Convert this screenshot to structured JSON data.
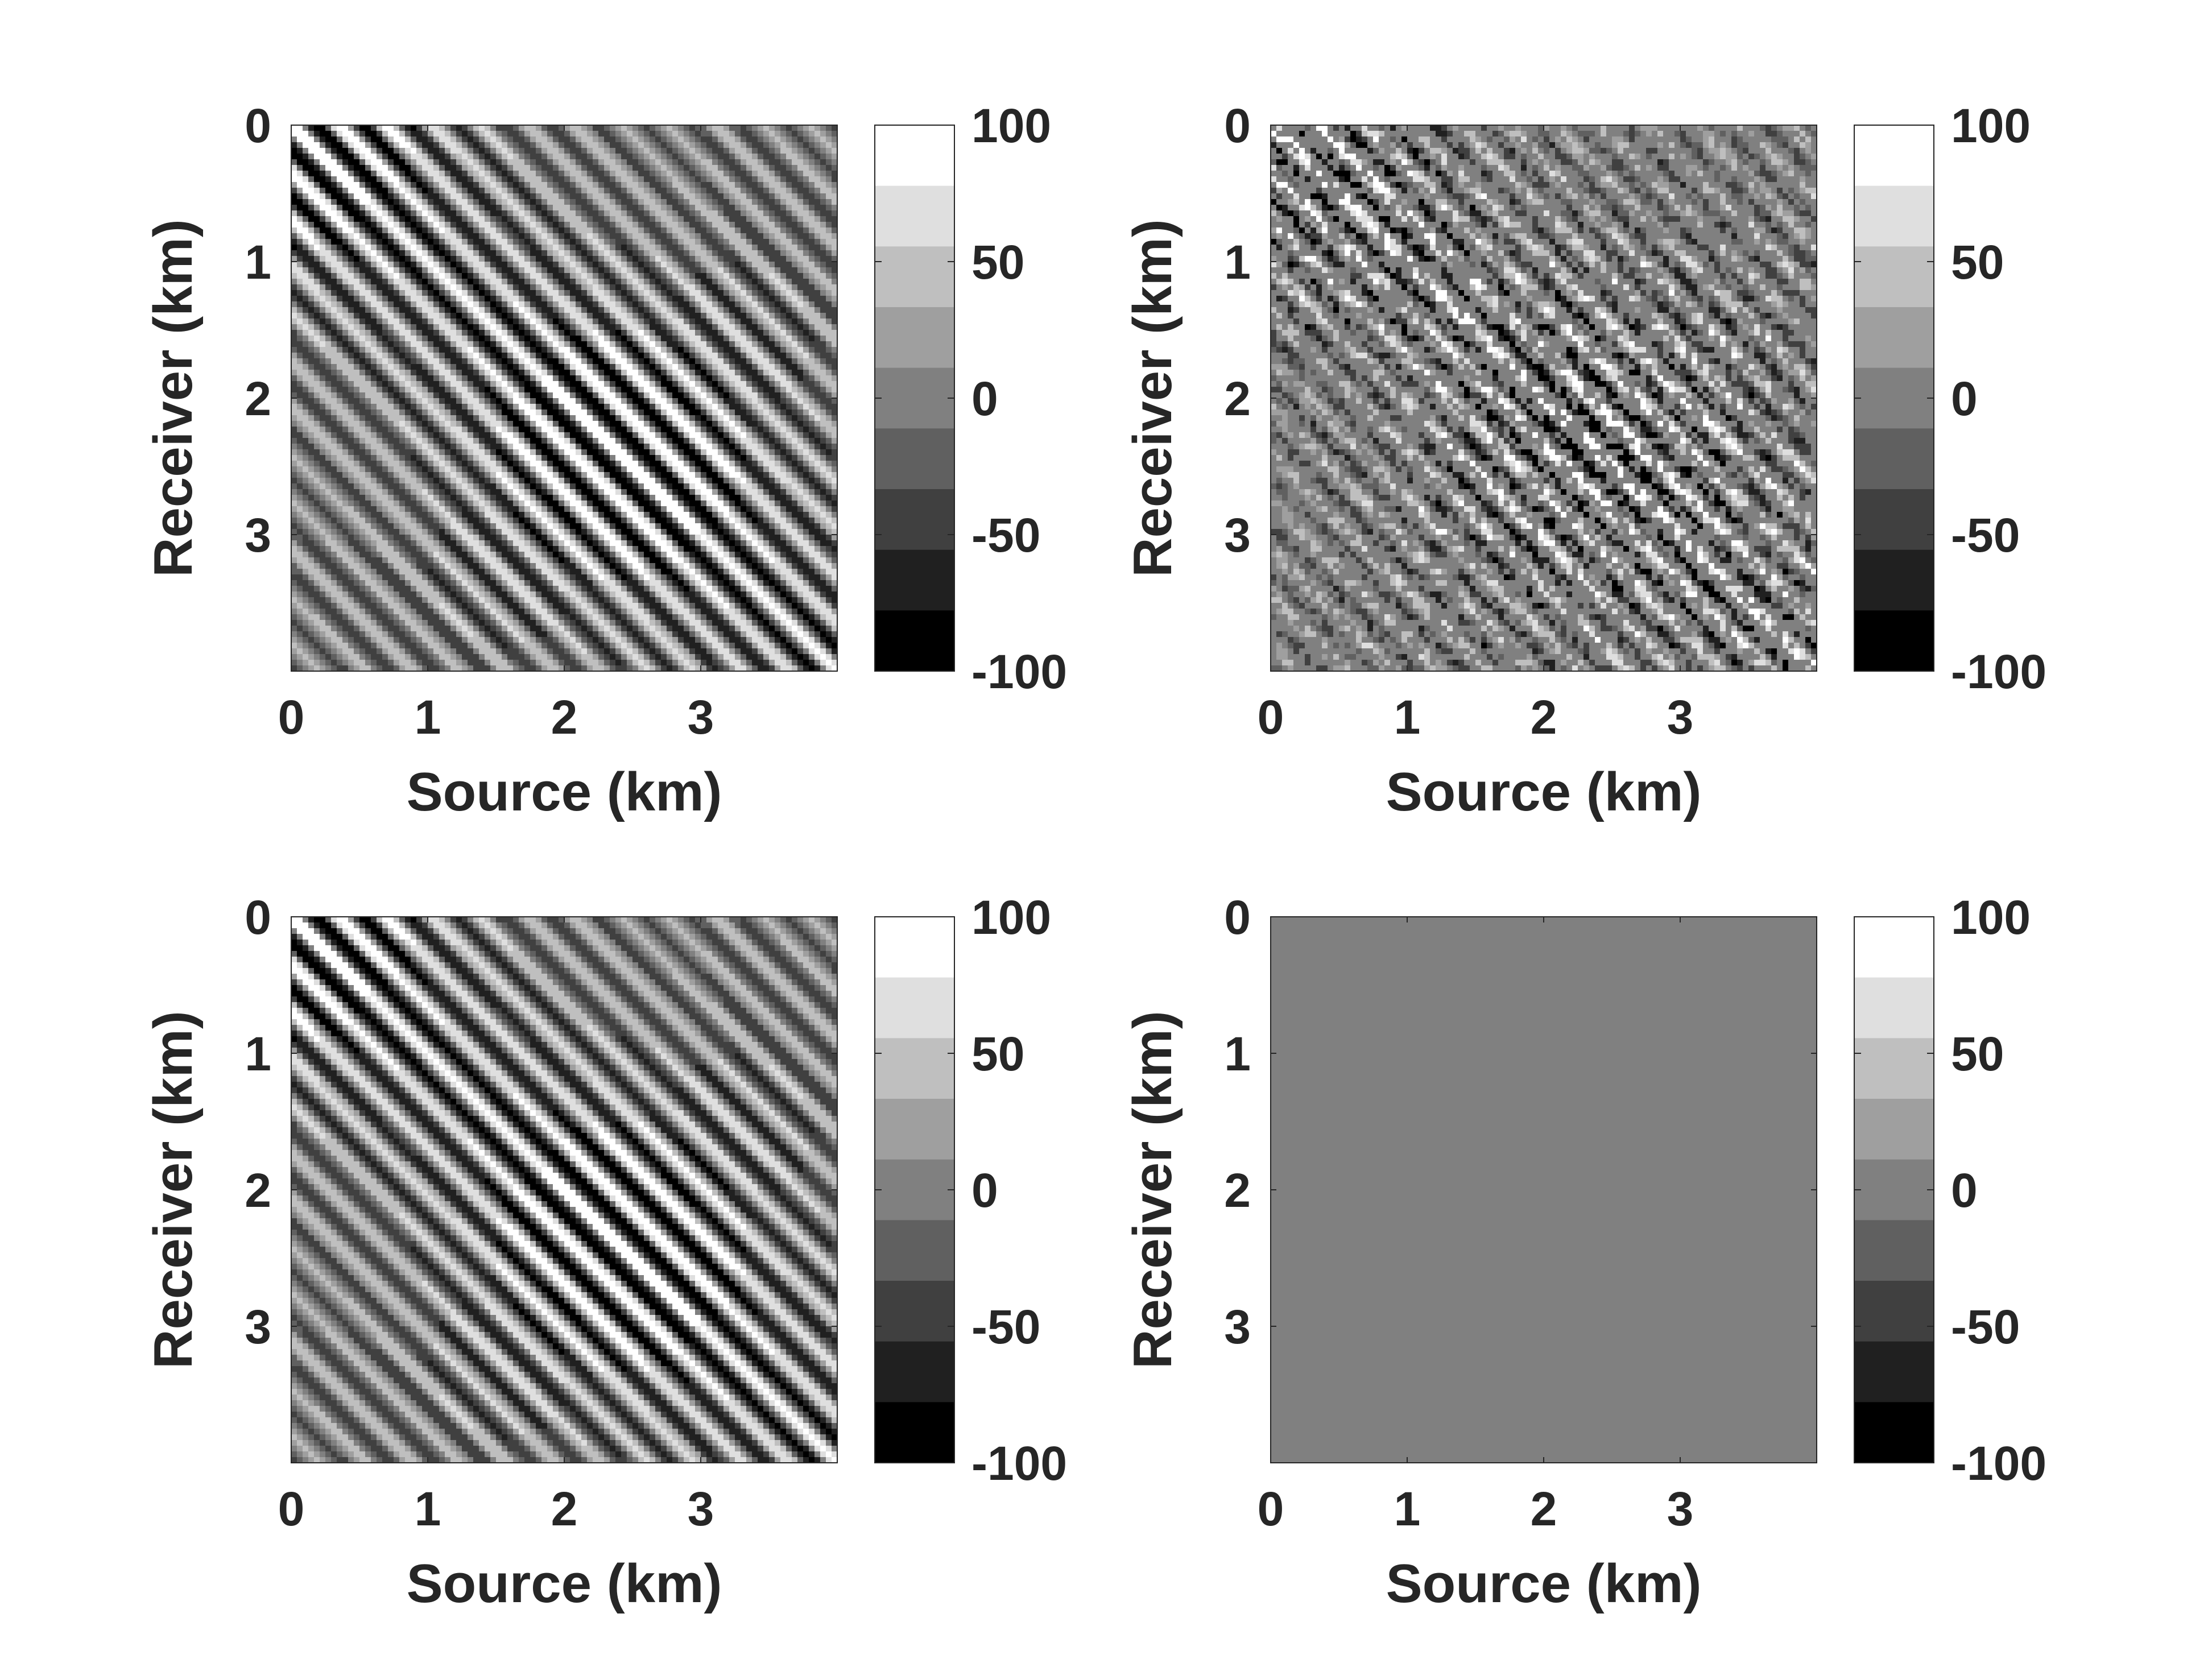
{
  "chart_data": [
    {
      "type": "heatmap",
      "panel": "top-left",
      "title": "",
      "xlabel": "Source (km)",
      "ylabel": "Receiver (km)",
      "xlim": [
        0,
        4
      ],
      "ylim": [
        0,
        4
      ],
      "y_reversed": true,
      "xticks": [
        0,
        1,
        2,
        3
      ],
      "yticks": [
        0,
        1,
        2,
        3
      ],
      "pattern": "diagonal oscillating stripes",
      "noise": false,
      "colorbar": {
        "min": -100,
        "max": 100,
        "levels": 9,
        "ticks": [
          100,
          50,
          0,
          -50,
          -100
        ],
        "colormap": "gray"
      }
    },
    {
      "type": "heatmap",
      "panel": "top-right",
      "title": "",
      "xlabel": "Source (km)",
      "ylabel": "Receiver (km)",
      "xlim": [
        0,
        4
      ],
      "ylim": [
        0,
        4
      ],
      "y_reversed": true,
      "xticks": [
        0,
        1,
        2,
        3
      ],
      "yticks": [
        0,
        1,
        2,
        3
      ],
      "pattern": "diagonal oscillating stripes with random dropouts",
      "noise": true,
      "colorbar": {
        "min": -100,
        "max": 100,
        "levels": 9,
        "ticks": [
          100,
          50,
          0,
          -50,
          -100
        ],
        "colormap": "gray"
      }
    },
    {
      "type": "heatmap",
      "panel": "bottom-left",
      "title": "",
      "xlabel": "Source (km)",
      "ylabel": "Receiver (km)",
      "xlim": [
        0,
        4
      ],
      "ylim": [
        0,
        4
      ],
      "y_reversed": true,
      "xticks": [
        0,
        1,
        2,
        3
      ],
      "yticks": [
        0,
        1,
        2,
        3
      ],
      "pattern": "diagonal oscillating stripes",
      "noise": false,
      "colorbar": {
        "min": -100,
        "max": 100,
        "levels": 9,
        "ticks": [
          100,
          50,
          0,
          -50,
          -100
        ],
        "colormap": "gray"
      }
    },
    {
      "type": "heatmap",
      "panel": "bottom-right",
      "title": "",
      "xlabel": "Source (km)",
      "ylabel": "Receiver (km)",
      "xlim": [
        0,
        4
      ],
      "ylim": [
        0,
        4
      ],
      "y_reversed": true,
      "xticks": [
        0,
        1,
        2,
        3
      ],
      "yticks": [
        0,
        1,
        2,
        3
      ],
      "pattern": "uniform zero",
      "uniform_value": 0,
      "noise": false,
      "colorbar": {
        "min": -100,
        "max": 100,
        "levels": 9,
        "ticks": [
          100,
          50,
          0,
          -50,
          -100
        ],
        "colormap": "gray"
      }
    }
  ]
}
